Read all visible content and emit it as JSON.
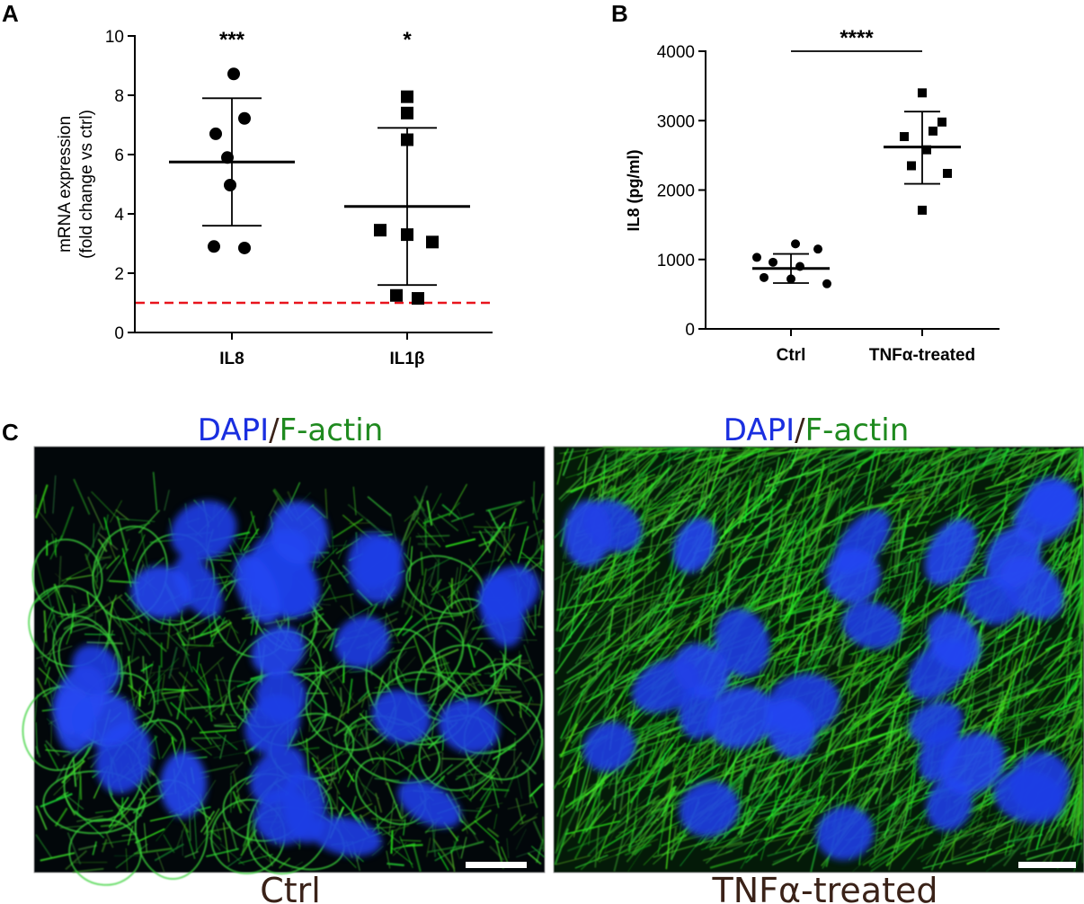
{
  "panels": {
    "a": "A",
    "b": "B",
    "c": "C"
  },
  "chart_data": [
    {
      "type": "scatter",
      "panel": "A",
      "ylabel_lines": [
        "mRNA expression",
        "(fold change vs ctrl)"
      ],
      "xlabel": "",
      "ylim": [
        0,
        10
      ],
      "yticks": [
        0,
        2,
        4,
        6,
        8,
        10
      ],
      "categories": [
        "IL8",
        "IL1β"
      ],
      "reference_line": {
        "y": 1,
        "color": "#e8141c",
        "style": "dashed"
      },
      "groups": [
        {
          "category": "IL8",
          "marker": "circle",
          "mean": 5.75,
          "sd_low": 3.6,
          "sd_high": 7.9,
          "significance": "***",
          "points": [
            {
              "dx": 0.02,
              "y": 8.72
            },
            {
              "dx": -0.18,
              "y": 6.7
            },
            {
              "dx": 0.14,
              "y": 7.22
            },
            {
              "dx": -0.05,
              "y": 5.9
            },
            {
              "dx": -0.02,
              "y": 4.97
            },
            {
              "dx": -0.2,
              "y": 2.9
            },
            {
              "dx": 0.14,
              "y": 2.85
            }
          ]
        },
        {
          "category": "IL1β",
          "marker": "square",
          "mean": 4.25,
          "sd_low": 1.6,
          "sd_high": 6.9,
          "significance": "*",
          "points": [
            {
              "dx": 0.0,
              "y": 7.95
            },
            {
              "dx": 0.0,
              "y": 7.4
            },
            {
              "dx": 0.0,
              "y": 6.5
            },
            {
              "dx": -0.3,
              "y": 3.45
            },
            {
              "dx": 0.0,
              "y": 3.3
            },
            {
              "dx": 0.28,
              "y": 3.05
            },
            {
              "dx": -0.12,
              "y": 1.25
            },
            {
              "dx": 0.12,
              "y": 1.15
            }
          ]
        }
      ]
    },
    {
      "type": "scatter",
      "panel": "B",
      "ylabel": "IL8 (pg/ml)",
      "xlabel": "",
      "ylim": [
        0,
        4000
      ],
      "yticks": [
        0,
        1000,
        2000,
        3000,
        4000
      ],
      "categories": [
        "Ctrl",
        "TNFα-treated"
      ],
      "significance": {
        "label": "****",
        "between": [
          "Ctrl",
          "TNFα-treated"
        ]
      },
      "groups": [
        {
          "category": "Ctrl",
          "marker": "circle",
          "mean": 870,
          "sd_low": 660,
          "sd_high": 1080,
          "points": [
            {
              "dx": -0.38,
              "y": 1030
            },
            {
              "dx": 0.05,
              "y": 1225
            },
            {
              "dx": 0.3,
              "y": 1150
            },
            {
              "dx": -0.2,
              "y": 960
            },
            {
              "dx": 0.1,
              "y": 900
            },
            {
              "dx": -0.3,
              "y": 740
            },
            {
              "dx": 0.0,
              "y": 720
            },
            {
              "dx": 0.4,
              "y": 650
            }
          ]
        },
        {
          "category": "TNFα-treated",
          "marker": "square",
          "mean": 2620,
          "sd_low": 2090,
          "sd_high": 3130,
          "points": [
            {
              "dx": 0.0,
              "y": 3400
            },
            {
              "dx": 0.22,
              "y": 2980
            },
            {
              "dx": 0.12,
              "y": 2850
            },
            {
              "dx": -0.2,
              "y": 2770
            },
            {
              "dx": 0.05,
              "y": 2580
            },
            {
              "dx": -0.12,
              "y": 2350
            },
            {
              "dx": 0.28,
              "y": 2240
            },
            {
              "dx": 0.0,
              "y": 1710
            }
          ]
        }
      ]
    }
  ],
  "micrographs": [
    {
      "stain_dapi": "DAPI",
      "stain_sep": "/",
      "stain_factin": "F-actin",
      "caption": "Ctrl",
      "dapi_color": "#1a2fe0",
      "factin_color": "#1f8a1f"
    },
    {
      "stain_dapi": "DAPI",
      "stain_sep": "/",
      "stain_factin": "F-actin",
      "caption": "TNFα-treated",
      "dapi_color": "#1a2fe0",
      "factin_color": "#1f8a1f"
    }
  ]
}
